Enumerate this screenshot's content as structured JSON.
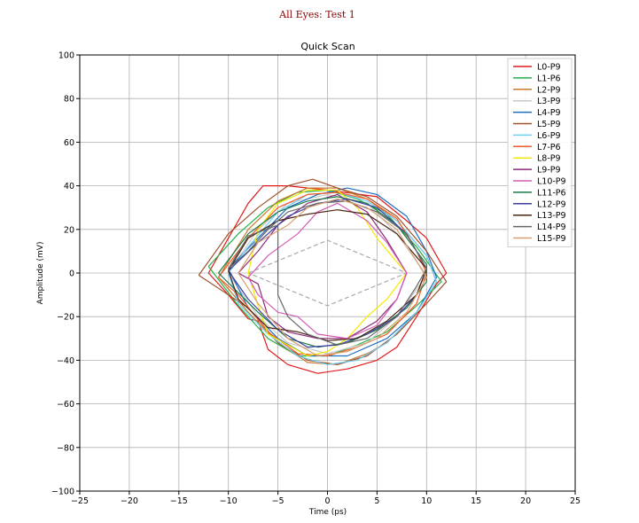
{
  "chart_data": {
    "type": "line",
    "suptitle": "All Eyes: Test 1",
    "title": "Quick Scan",
    "xlabel": "Time (ps)",
    "ylabel": "Amplitude (mV)",
    "xlim": [
      -25,
      25
    ],
    "ylim": [
      -100,
      100
    ],
    "xticks": [
      -25,
      -20,
      -15,
      -10,
      -5,
      0,
      5,
      10,
      15,
      20,
      25
    ],
    "yticks": [
      -100,
      -80,
      -60,
      -40,
      -20,
      0,
      20,
      40,
      60,
      80,
      100
    ],
    "grid": true,
    "legend_placement": "top-right",
    "mask": {
      "style": "dashed",
      "color": "#aaaaaa",
      "points": [
        [
          -8,
          0
        ],
        [
          0,
          15
        ],
        [
          8,
          0
        ],
        [
          0,
          -15
        ],
        [
          -8,
          0
        ]
      ]
    },
    "series": [
      {
        "name": "L0-P9",
        "color": "#e31a1c",
        "points": [
          [
            -12,
            0
          ],
          [
            -8,
            32
          ],
          [
            -6.5,
            40
          ],
          [
            -4,
            40
          ],
          [
            0,
            38
          ],
          [
            5,
            35
          ],
          [
            8,
            24
          ],
          [
            10,
            16
          ],
          [
            12,
            0
          ],
          [
            11,
            -5
          ],
          [
            9,
            -20
          ],
          [
            7,
            -34
          ],
          [
            5,
            -40
          ],
          [
            2,
            -44
          ],
          [
            -1,
            -46
          ],
          [
            -4,
            -42
          ],
          [
            -6,
            -35
          ],
          [
            -7,
            -22
          ],
          [
            -8,
            -21
          ],
          [
            -10,
            -10
          ],
          [
            -12,
            0
          ]
        ]
      },
      {
        "name": "L1-P6",
        "color": "#22b14c",
        "points": [
          [
            -12,
            3
          ],
          [
            -9,
            18
          ],
          [
            -6,
            30
          ],
          [
            -3,
            37
          ],
          [
            0,
            38
          ],
          [
            3,
            34
          ],
          [
            6,
            27
          ],
          [
            9,
            12
          ],
          [
            11.5,
            -4
          ],
          [
            9,
            -15
          ],
          [
            6,
            -27
          ],
          [
            3,
            -33
          ],
          [
            0,
            -38
          ],
          [
            -3,
            -38
          ],
          [
            -6,
            -30
          ],
          [
            -9,
            -15
          ],
          [
            -12,
            3
          ]
        ]
      },
      {
        "name": "L2-P9",
        "color": "#c87a2c",
        "points": [
          [
            -11,
            -2
          ],
          [
            -8,
            20
          ],
          [
            -5,
            33
          ],
          [
            -2,
            39
          ],
          [
            1,
            39
          ],
          [
            4,
            34
          ],
          [
            7,
            24
          ],
          [
            10,
            8
          ],
          [
            11,
            -4
          ],
          [
            9,
            -18
          ],
          [
            6,
            -32
          ],
          [
            4,
            -37
          ],
          [
            1,
            -42
          ],
          [
            -2,
            -41
          ],
          [
            -5,
            -32
          ],
          [
            -8,
            -18
          ],
          [
            -11,
            -2
          ]
        ]
      },
      {
        "name": "L3-P9",
        "color": "#c8c8c8",
        "points": [
          [
            -10,
            0
          ],
          [
            -7,
            20
          ],
          [
            -4,
            32
          ],
          [
            0,
            36
          ],
          [
            4,
            32
          ],
          [
            7,
            18
          ],
          [
            10,
            -1
          ],
          [
            7,
            -20
          ],
          [
            4,
            -32
          ],
          [
            0,
            -37
          ],
          [
            -4,
            -32
          ],
          [
            -7,
            -20
          ],
          [
            -10,
            0
          ]
        ]
      },
      {
        "name": "L4-P9",
        "color": "#1f6fbf",
        "points": [
          [
            -10,
            2
          ],
          [
            -7,
            16
          ],
          [
            -4,
            30
          ],
          [
            -1,
            36
          ],
          [
            2,
            39
          ],
          [
            5,
            36
          ],
          [
            8,
            26
          ],
          [
            10,
            10
          ],
          [
            11,
            -2
          ],
          [
            9,
            -18
          ],
          [
            6,
            -30
          ],
          [
            2,
            -38
          ],
          [
            -2,
            -38
          ],
          [
            -5,
            -30
          ],
          [
            -8,
            -16
          ],
          [
            -10,
            2
          ]
        ]
      },
      {
        "name": "L5-P9",
        "color": "#a0522d",
        "points": [
          [
            -13,
            -1
          ],
          [
            -10,
            18
          ],
          [
            -7,
            30
          ],
          [
            -4,
            40
          ],
          [
            -1.5,
            43
          ],
          [
            1,
            39
          ],
          [
            4,
            35
          ],
          [
            7,
            26
          ],
          [
            10,
            10
          ],
          [
            12,
            -4
          ],
          [
            10,
            -14
          ],
          [
            7,
            -28
          ],
          [
            4,
            -38
          ],
          [
            1,
            -42
          ],
          [
            -2,
            -40
          ],
          [
            -5,
            -32
          ],
          [
            -8,
            -16
          ],
          [
            -13,
            -1
          ]
        ]
      },
      {
        "name": "L6-P9",
        "color": "#6ecff6",
        "points": [
          [
            -10,
            0
          ],
          [
            -8,
            12
          ],
          [
            -5,
            28
          ],
          [
            -2,
            36
          ],
          [
            1,
            37
          ],
          [
            4,
            33
          ],
          [
            7,
            24
          ],
          [
            10,
            8
          ],
          [
            11,
            -4
          ],
          [
            9,
            -18
          ],
          [
            6,
            -32
          ],
          [
            3,
            -40
          ],
          [
            0,
            -42
          ],
          [
            -3,
            -38
          ],
          [
            -6,
            -28
          ],
          [
            -9,
            -14
          ],
          [
            -10,
            0
          ]
        ]
      },
      {
        "name": "L7-P6",
        "color": "#f05a28",
        "points": [
          [
            -11,
            -2
          ],
          [
            -8,
            16
          ],
          [
            -5,
            30
          ],
          [
            -2,
            36
          ],
          [
            1,
            37
          ],
          [
            4,
            34
          ],
          [
            7,
            25
          ],
          [
            9,
            10
          ],
          [
            10,
            0
          ],
          [
            9,
            -14
          ],
          [
            6,
            -28
          ],
          [
            3,
            -34
          ],
          [
            0,
            -38
          ],
          [
            -3,
            -37
          ],
          [
            -6,
            -27
          ],
          [
            -9,
            -10
          ],
          [
            -11,
            -2
          ]
        ]
      },
      {
        "name": "L8-P9",
        "color": "#f5e900",
        "points": [
          [
            -8,
            0
          ],
          [
            -7,
            20
          ],
          [
            -5,
            32
          ],
          [
            -2,
            38
          ],
          [
            1,
            38
          ],
          [
            3,
            30
          ],
          [
            5,
            16
          ],
          [
            7,
            5
          ],
          [
            8,
            0
          ],
          [
            6,
            -12
          ],
          [
            4,
            -20
          ],
          [
            2,
            -30
          ],
          [
            0,
            -36
          ],
          [
            -2,
            -38
          ],
          [
            -4,
            -33
          ],
          [
            -6,
            -28
          ],
          [
            -7,
            -15
          ],
          [
            -8,
            0
          ]
        ]
      },
      {
        "name": "L9-P9",
        "color": "#8b2a7a",
        "points": [
          [
            -9,
            0
          ],
          [
            -7,
            10
          ],
          [
            -5,
            22
          ],
          [
            -2,
            32
          ],
          [
            1,
            36
          ],
          [
            4,
            28
          ],
          [
            6,
            15
          ],
          [
            8,
            0
          ],
          [
            7,
            -12
          ],
          [
            5,
            -22
          ],
          [
            2,
            -30
          ],
          [
            -1,
            -30
          ],
          [
            -4,
            -27
          ],
          [
            -6,
            -20
          ],
          [
            -7,
            -5
          ],
          [
            -9,
            0
          ]
        ]
      },
      {
        "name": "L10-P9",
        "color": "#d45bb5",
        "points": [
          [
            -8,
            -2
          ],
          [
            -6,
            8
          ],
          [
            -3,
            18
          ],
          [
            -1,
            28
          ],
          [
            1,
            32
          ],
          [
            4,
            24
          ],
          [
            6,
            14
          ],
          [
            8,
            0
          ],
          [
            7,
            -12
          ],
          [
            5,
            -24
          ],
          [
            2,
            -30
          ],
          [
            -1,
            -28
          ],
          [
            -3,
            -20
          ],
          [
            -5,
            -18
          ],
          [
            -7,
            -10
          ],
          [
            -8,
            -2
          ]
        ]
      },
      {
        "name": "L11-P6",
        "color": "#1a7a4a",
        "points": [
          [
            -11,
            0
          ],
          [
            -8,
            18
          ],
          [
            -5,
            28
          ],
          [
            -2,
            33
          ],
          [
            1,
            35
          ],
          [
            4,
            32
          ],
          [
            7,
            22
          ],
          [
            10,
            4
          ],
          [
            10,
            -4
          ],
          [
            8,
            -16
          ],
          [
            5,
            -26
          ],
          [
            2,
            -32
          ],
          [
            -1,
            -34
          ],
          [
            -4,
            -30
          ],
          [
            -7,
            -18
          ],
          [
            -11,
            0
          ]
        ]
      },
      {
        "name": "L12-P9",
        "color": "#3b3fa0",
        "points": [
          [
            -10,
            1
          ],
          [
            -7,
            14
          ],
          [
            -4,
            26
          ],
          [
            -1,
            32
          ],
          [
            2,
            34
          ],
          [
            5,
            30
          ],
          [
            8,
            18
          ],
          [
            10,
            2
          ],
          [
            9,
            -10
          ],
          [
            7,
            -20
          ],
          [
            4,
            -28
          ],
          [
            1,
            -33
          ],
          [
            -2,
            -34
          ],
          [
            -5,
            -26
          ],
          [
            -8,
            -12
          ],
          [
            -10,
            1
          ]
        ]
      },
      {
        "name": "L13-P9",
        "color": "#4a2511",
        "points": [
          [
            -10,
            1
          ],
          [
            -8,
            16
          ],
          [
            -5,
            24
          ],
          [
            -2,
            27
          ],
          [
            1,
            29
          ],
          [
            4,
            27
          ],
          [
            7,
            18
          ],
          [
            10,
            2
          ],
          [
            9,
            -10
          ],
          [
            6,
            -22
          ],
          [
            3,
            -30
          ],
          [
            0,
            -31
          ],
          [
            -3,
            -27
          ],
          [
            -6,
            -25
          ],
          [
            -9,
            -12
          ],
          [
            -10,
            1
          ]
        ]
      },
      {
        "name": "L14-P9",
        "color": "#666666",
        "points": [
          [
            -10,
            2
          ],
          [
            -8,
            17
          ],
          [
            -5,
            22
          ],
          [
            -5,
            0
          ],
          [
            -5,
            -10
          ],
          [
            -4,
            -20
          ],
          [
            -2,
            -28
          ],
          [
            1,
            -33
          ],
          [
            4,
            -30
          ],
          [
            7,
            -20
          ],
          [
            9,
            -6
          ],
          [
            10,
            2
          ],
          [
            8,
            18
          ],
          [
            5,
            28
          ],
          [
            2,
            33
          ],
          [
            -1,
            32
          ],
          [
            -4,
            28
          ],
          [
            -6,
            20
          ],
          [
            -8,
            10
          ],
          [
            -10,
            2
          ]
        ]
      },
      {
        "name": "L15-P9",
        "color": "#d8a070",
        "points": [
          [
            -9,
            0
          ],
          [
            -7,
            14
          ],
          [
            -4,
            22
          ],
          [
            -2,
            30
          ],
          [
            1,
            34
          ],
          [
            4,
            30
          ],
          [
            7,
            20
          ],
          [
            10,
            -2
          ],
          [
            8,
            -18
          ],
          [
            5,
            -30
          ],
          [
            2,
            -36
          ],
          [
            -1,
            -38
          ],
          [
            -4,
            -30
          ],
          [
            -7,
            -14
          ],
          [
            -9,
            0
          ]
        ]
      }
    ]
  }
}
